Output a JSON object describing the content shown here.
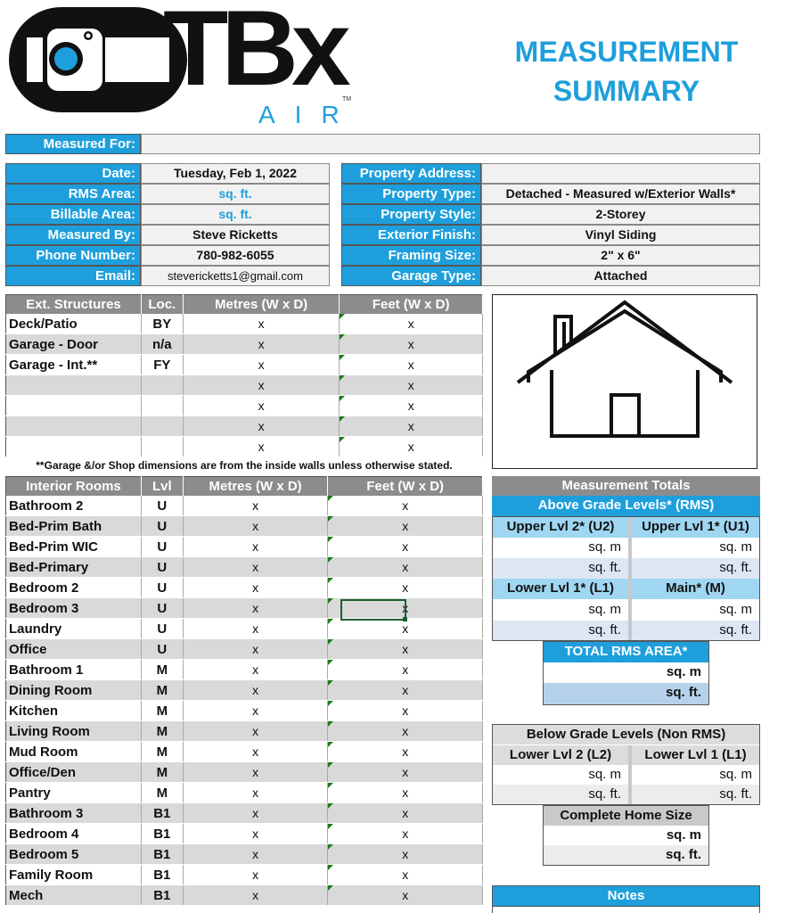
{
  "logo": {
    "text": "TBx",
    "sub": "AIR",
    "tm": "TM"
  },
  "title_line1": "MEASUREMENT",
  "title_line2": "SUMMARY",
  "measured_for": {
    "label": "Measured For:",
    "value": ""
  },
  "left_info": [
    {
      "label": "Date:",
      "value": "Tuesday, Feb 1, 2022"
    },
    {
      "label": "RMS Area:",
      "value": "sq. ft."
    },
    {
      "label": "Billable Area:",
      "value": "sq. ft."
    },
    {
      "label": "Measured By:",
      "value": "Steve Ricketts"
    },
    {
      "label": "Phone Number:",
      "value": "780-982-6055"
    },
    {
      "label": "Email:",
      "value": "stevericketts1@gmail.com"
    }
  ],
  "right_info": [
    {
      "label": "Property Address:",
      "value": ""
    },
    {
      "label": "Property Type:",
      "value": "Detached - Measured w/Exterior Walls*"
    },
    {
      "label": "Property Style:",
      "value": "2-Storey"
    },
    {
      "label": "Exterior Finish:",
      "value": "Vinyl Siding"
    },
    {
      "label": "Framing Size:",
      "value": "2\" x 6\""
    },
    {
      "label": "Garage Type:",
      "value": "Attached"
    }
  ],
  "ext": {
    "headers": [
      "Ext. Structures",
      "Loc.",
      "Metres (W x D)",
      "Feet (W x D)"
    ],
    "rows": [
      {
        "name": "Deck/Patio",
        "loc": "BY"
      },
      {
        "name": "Garage - Door",
        "loc": "n/a"
      },
      {
        "name": "Garage - Int.**",
        "loc": "FY"
      },
      {
        "name": "",
        "loc": ""
      },
      {
        "name": "",
        "loc": ""
      },
      {
        "name": "",
        "loc": ""
      },
      {
        "name": "",
        "loc": ""
      }
    ],
    "x": "x"
  },
  "garage_note": "**Garage &/or Shop dimensions are from the inside walls unless otherwise stated.",
  "interior": {
    "headers": [
      "Interior Rooms",
      "Lvl",
      "Metres (W x D)",
      "Feet (W x D)"
    ],
    "rows": [
      {
        "name": "Bathroom 2",
        "lvl": "U"
      },
      {
        "name": "Bed-Prim Bath",
        "lvl": "U"
      },
      {
        "name": "Bed-Prim WIC",
        "lvl": "U"
      },
      {
        "name": "Bed-Primary",
        "lvl": "U"
      },
      {
        "name": "Bedroom 2",
        "lvl": "U"
      },
      {
        "name": "Bedroom 3",
        "lvl": "U"
      },
      {
        "name": "Laundry",
        "lvl": "U"
      },
      {
        "name": "Office",
        "lvl": "U"
      },
      {
        "name": "Bathroom 1",
        "lvl": "M"
      },
      {
        "name": "Dining Room",
        "lvl": "M"
      },
      {
        "name": "Kitchen",
        "lvl": "M"
      },
      {
        "name": "Living Room",
        "lvl": "M"
      },
      {
        "name": "Mud Room",
        "lvl": "M"
      },
      {
        "name": "Office/Den",
        "lvl": "M"
      },
      {
        "name": "Pantry",
        "lvl": "M"
      },
      {
        "name": "Bathroom 3",
        "lvl": "B1"
      },
      {
        "name": "Bedroom 4",
        "lvl": "B1"
      },
      {
        "name": "Bedroom 5",
        "lvl": "B1"
      },
      {
        "name": "Family Room",
        "lvl": "B1"
      },
      {
        "name": "Mech",
        "lvl": "B1"
      }
    ]
  },
  "totals": {
    "title": "Measurement Totals",
    "above": "Above Grade Levels* (RMS)",
    "u2": "Upper Lvl 2* (U2)",
    "u1": "Upper Lvl 1* (U1)",
    "l1": "Lower Lvl 1* (L1)",
    "main": "Main* (M)",
    "sqm": "sq. m",
    "sqft": "sq. ft.",
    "total_rms": "TOTAL RMS AREA*",
    "below": "Below Grade Levels (Non RMS)",
    "ll2": "Lower Lvl 2 (L2)",
    "ll1": "Lower Lvl 1 (L1)",
    "complete": "Complete Home Size",
    "notes": "Notes"
  }
}
